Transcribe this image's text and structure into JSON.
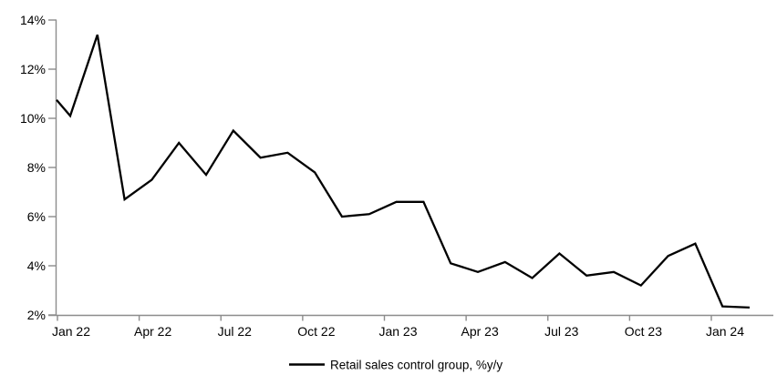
{
  "chart_data": {
    "type": "line",
    "title": "",
    "x": [
      "Jan 22",
      "Feb 22",
      "Mar 22",
      "Apr 22",
      "May 22",
      "Jun 22",
      "Jul 22",
      "Aug 22",
      "Sep 22",
      "Oct 22",
      "Nov 22",
      "Dec 22",
      "Jan 23",
      "Feb 23",
      "Mar 23",
      "Apr 23",
      "May 23",
      "Jun 23",
      "Jul 23",
      "Aug 23",
      "Sep 23",
      "Oct 23",
      "Nov 23",
      "Dec 23",
      "Jan 24",
      "Feb 24"
    ],
    "series": [
      {
        "name": "Retail sales control group, %y/y",
        "color": "#000000",
        "values": [
          10.1,
          13.4,
          6.7,
          7.5,
          9.0,
          7.7,
          9.5,
          8.4,
          8.6,
          7.8,
          6.0,
          6.1,
          6.6,
          6.6,
          4.1,
          3.75,
          4.15,
          3.5,
          4.5,
          3.6,
          3.75,
          3.2,
          4.4,
          4.9,
          2.35,
          2.3
        ]
      }
    ],
    "line_enters_left_edge_at_value": 10.75,
    "ylim": [
      2,
      14
    ],
    "ytick_labels": [
      "2%",
      "4%",
      "6%",
      "8%",
      "10%",
      "12%",
      "14%"
    ],
    "ytick_values": [
      2,
      4,
      6,
      8,
      10,
      12,
      14
    ],
    "xtick_labels": [
      "Jan 22",
      "Apr 22",
      "Jul 22",
      "Oct 22",
      "Jan 23",
      "Apr 23",
      "Jul 23",
      "Oct 23",
      "Jan 24"
    ],
    "grid": false,
    "legend_position": "bottom-center",
    "legend": {
      "entries": [
        {
          "label": "Retail sales control group, %y/y",
          "color": "#000000"
        }
      ]
    },
    "axis_color": "#8c8c8c",
    "background_color": "#ffffff"
  }
}
